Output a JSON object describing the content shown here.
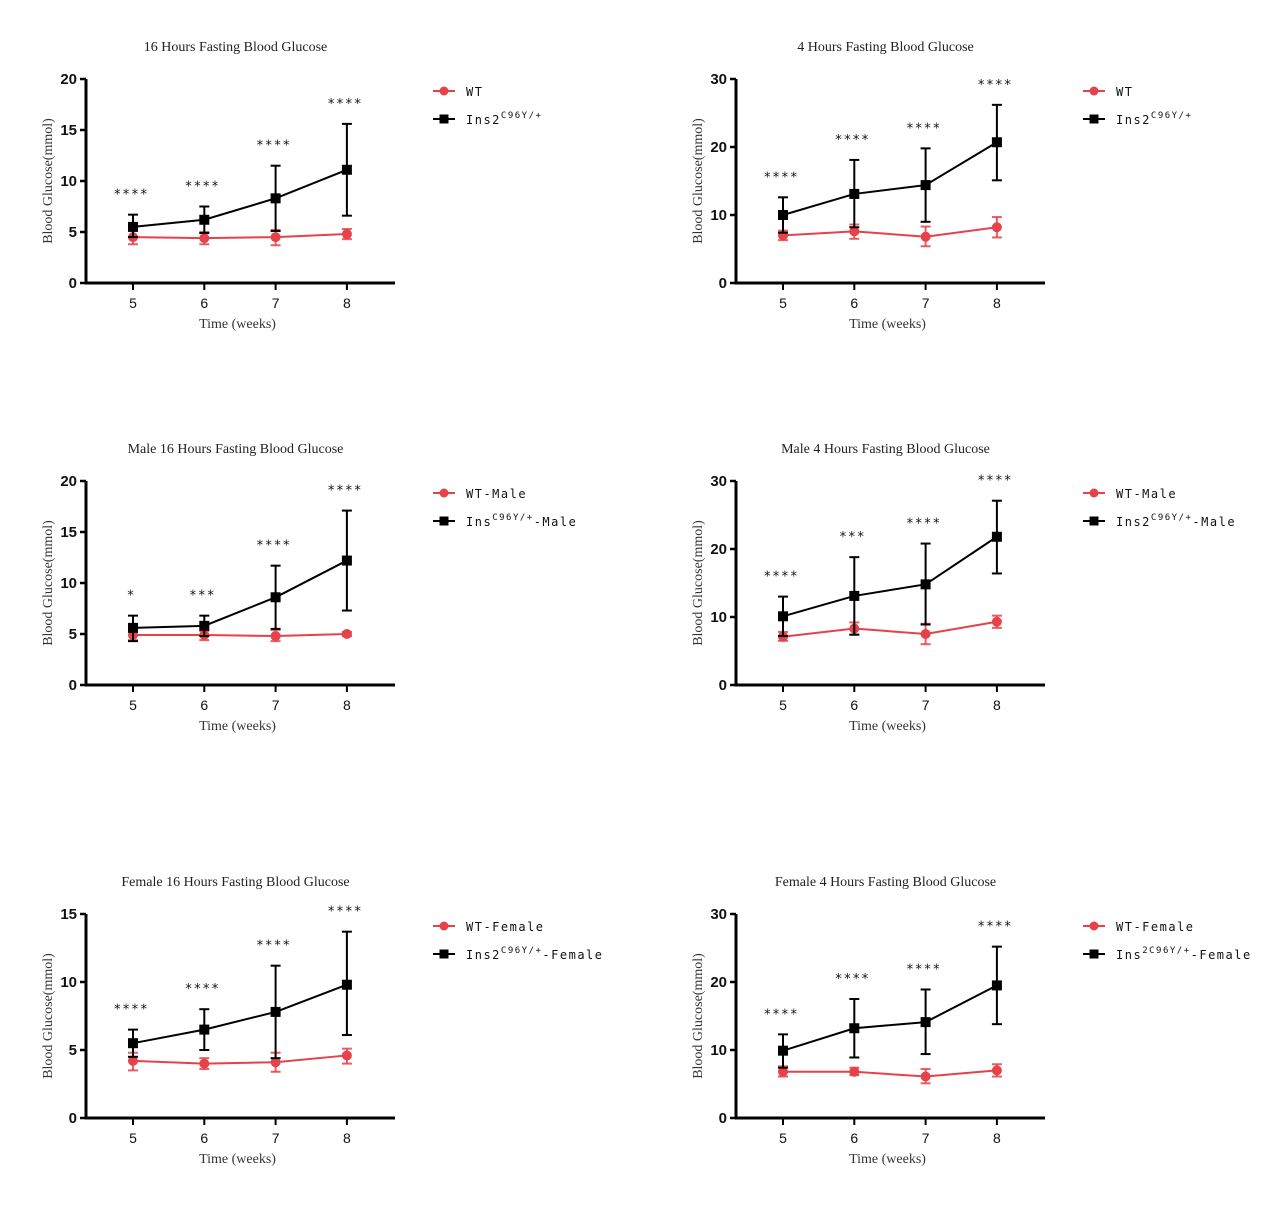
{
  "colors": {
    "wt": "#e5424a",
    "mutant": "#000000"
  },
  "chart_data": [
    {
      "id": "all-16h",
      "type": "line",
      "title": "16 Hours Fasting Blood Glucose",
      "xlabel": "Time (weeks)",
      "ylabel": "Blood Glucose(mmol)",
      "x": [
        5,
        6,
        7,
        8
      ],
      "ylim": [
        0,
        20
      ],
      "yticks": [
        0,
        5,
        10,
        15,
        20
      ],
      "legend": "right",
      "significance": [
        "****",
        "****",
        "****",
        "****"
      ],
      "series": [
        {
          "name": "WT",
          "legend_base": "WT",
          "legend_sup": "",
          "legend_suffix": "",
          "marker": "circle",
          "color": "#e5424a",
          "values": [
            4.5,
            4.4,
            4.5,
            4.8
          ],
          "err_low": [
            3.8,
            3.8,
            3.7,
            4.3
          ],
          "err_high": [
            5.2,
            5.0,
            5.2,
            5.3
          ]
        },
        {
          "name": "Ins2C96Y/+",
          "legend_base": "Ins2",
          "legend_sup": "C96Y/+",
          "legend_suffix": "",
          "marker": "square",
          "color": "#000000",
          "values": [
            5.5,
            6.2,
            8.3,
            11.1
          ],
          "err_low": [
            4.5,
            4.9,
            5.1,
            6.6
          ],
          "err_high": [
            6.7,
            7.5,
            11.5,
            15.6
          ]
        }
      ]
    },
    {
      "id": "all-4h",
      "type": "line",
      "title": "4 Hours Fasting Blood Glucose",
      "xlabel": "Time (weeks)",
      "ylabel": "Blood Glucose(mmol)",
      "x": [
        5,
        6,
        7,
        8
      ],
      "ylim": [
        0,
        30
      ],
      "yticks": [
        0,
        10,
        20,
        30
      ],
      "legend": "right",
      "significance": [
        "****",
        "****",
        "****",
        "****"
      ],
      "series": [
        {
          "name": "WT",
          "legend_base": "WT",
          "legend_sup": "",
          "legend_suffix": "",
          "marker": "circle",
          "color": "#e5424a",
          "values": [
            7.0,
            7.6,
            6.8,
            8.2
          ],
          "err_low": [
            6.3,
            6.5,
            5.4,
            6.7
          ],
          "err_high": [
            7.7,
            8.6,
            8.3,
            9.7
          ]
        },
        {
          "name": "Ins2C96Y/+",
          "legend_base": "Ins2",
          "legend_sup": "C96Y/+",
          "legend_suffix": "",
          "marker": "square",
          "color": "#000000",
          "values": [
            10.0,
            13.1,
            14.4,
            20.7
          ],
          "err_low": [
            7.4,
            8.2,
            9.0,
            15.1
          ],
          "err_high": [
            12.6,
            18.1,
            19.8,
            26.2
          ]
        }
      ]
    },
    {
      "id": "male-16h",
      "type": "line",
      "title": "Male 16 Hours Fasting Blood Glucose",
      "xlabel": "Time (weeks)",
      "ylabel": "Blood Glucose(mmol)",
      "x": [
        5,
        6,
        7,
        8
      ],
      "ylim": [
        0,
        20
      ],
      "yticks": [
        0,
        5,
        10,
        15,
        20
      ],
      "legend": "right",
      "significance": [
        "*",
        "***",
        "****",
        "****"
      ],
      "series": [
        {
          "name": "WT-Male",
          "legend_base": "WT-Male",
          "legend_sup": "",
          "legend_suffix": "",
          "marker": "circle",
          "color": "#e5424a",
          "values": [
            4.9,
            4.9,
            4.8,
            5.0
          ],
          "err_low": [
            4.4,
            4.4,
            4.3,
            4.8
          ],
          "err_high": [
            5.3,
            5.3,
            5.4,
            5.2
          ]
        },
        {
          "name": "InsC96Y/+-Male",
          "legend_base": "Ins",
          "legend_sup": "C96Y/+",
          "legend_suffix": "-Male",
          "marker": "square",
          "color": "#000000",
          "values": [
            5.6,
            5.8,
            8.6,
            12.2
          ],
          "err_low": [
            4.3,
            4.8,
            5.5,
            7.3
          ],
          "err_high": [
            6.8,
            6.8,
            11.7,
            17.1
          ]
        }
      ]
    },
    {
      "id": "male-4h",
      "type": "line",
      "title": "Male 4 Hours Fasting Blood Glucose",
      "xlabel": "Time (weeks)",
      "ylabel": "Blood Glucose(mmol)",
      "x": [
        5,
        6,
        7,
        8
      ],
      "ylim": [
        0,
        30
      ],
      "yticks": [
        0,
        10,
        20,
        30
      ],
      "legend": "right",
      "significance": [
        "****",
        "***",
        "****",
        "****"
      ],
      "series": [
        {
          "name": "WT-Male",
          "legend_base": "WT-Male",
          "legend_sup": "",
          "legend_suffix": "",
          "marker": "circle",
          "color": "#e5424a",
          "values": [
            7.1,
            8.3,
            7.5,
            9.3
          ],
          "err_low": [
            6.5,
            7.4,
            6.0,
            8.4
          ],
          "err_high": [
            7.8,
            9.2,
            9.0,
            10.2
          ]
        },
        {
          "name": "Ins2C96Y/+-Male",
          "legend_base": "Ins2",
          "legend_sup": "C96Y/+",
          "legend_suffix": "-Male",
          "marker": "square",
          "color": "#000000",
          "values": [
            10.1,
            13.1,
            14.8,
            21.8
          ],
          "err_low": [
            7.2,
            7.4,
            8.9,
            16.4
          ],
          "err_high": [
            13.0,
            18.8,
            20.8,
            27.1
          ]
        }
      ]
    },
    {
      "id": "female-16h",
      "type": "line",
      "title": "Female 16 Hours Fasting Blood Glucose",
      "xlabel": "Time (weeks)",
      "ylabel": "Blood Glucose(mmol)",
      "x": [
        5,
        6,
        7,
        8
      ],
      "ylim": [
        0,
        15
      ],
      "yticks": [
        0,
        5,
        10,
        15
      ],
      "legend": "right",
      "significance": [
        "****",
        "****",
        "****",
        "****"
      ],
      "series": [
        {
          "name": "WT-Female",
          "legend_base": "WT-Female",
          "legend_sup": "",
          "legend_suffix": "",
          "marker": "circle",
          "color": "#e5424a",
          "values": [
            4.2,
            4.0,
            4.1,
            4.6
          ],
          "err_low": [
            3.5,
            3.6,
            3.4,
            4.0
          ],
          "err_high": [
            4.8,
            4.4,
            4.8,
            5.1
          ]
        },
        {
          "name": "Ins2C96Y/+-Female",
          "legend_base": "Ins2",
          "legend_sup": "C96Y/+",
          "legend_suffix": "-Female",
          "marker": "square",
          "color": "#000000",
          "values": [
            5.5,
            6.5,
            7.8,
            9.8
          ],
          "err_low": [
            4.5,
            5.0,
            4.4,
            6.1
          ],
          "err_high": [
            6.5,
            8.0,
            11.2,
            13.7
          ]
        }
      ]
    },
    {
      "id": "female-4h",
      "type": "line",
      "title": "Female 4 Hours Fasting Blood Glucose",
      "xlabel": "Time (weeks)",
      "ylabel": "Blood Glucose(mmol)",
      "x": [
        5,
        6,
        7,
        8
      ],
      "ylim": [
        0,
        30
      ],
      "yticks": [
        0,
        10,
        20,
        30
      ],
      "legend": "right",
      "significance": [
        "****",
        "****",
        "****",
        "****"
      ],
      "series": [
        {
          "name": "WT-Female",
          "legend_base": "WT-Female",
          "legend_sup": "",
          "legend_suffix": "",
          "marker": "circle",
          "color": "#e5424a",
          "values": [
            6.8,
            6.8,
            6.1,
            7.0
          ],
          "err_low": [
            6.1,
            6.3,
            5.1,
            6.1
          ],
          "err_high": [
            7.6,
            7.4,
            7.2,
            7.9
          ]
        },
        {
          "name": "Ins2C96Y/+-Female",
          "legend_base": "Ins",
          "legend_sup": "2C96Y/+",
          "legend_suffix": "-Female",
          "marker": "square",
          "color": "#000000",
          "values": [
            9.9,
            13.2,
            14.1,
            19.5
          ],
          "err_low": [
            7.4,
            8.9,
            9.4,
            13.8
          ],
          "err_high": [
            12.3,
            17.5,
            18.9,
            25.2
          ]
        }
      ]
    }
  ]
}
